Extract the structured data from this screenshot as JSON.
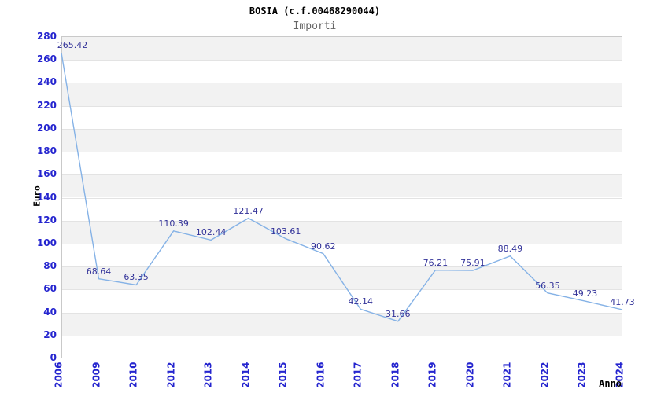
{
  "chart_data": {
    "type": "line",
    "title": "BOSIA (c.f.00468290044)",
    "subtitle": "Importi",
    "xlabel": "Anno",
    "ylabel": "Euro",
    "categories": [
      "2006",
      "2009",
      "2010",
      "2012",
      "2013",
      "2014",
      "2015",
      "2016",
      "2017",
      "2018",
      "2019",
      "2020",
      "2021",
      "2022",
      "2023",
      "2024"
    ],
    "values": [
      265.42,
      68.64,
      63.35,
      110.39,
      102.44,
      121.47,
      103.61,
      90.62,
      42.14,
      31.66,
      76.21,
      75.91,
      88.49,
      56.35,
      49.23,
      41.73
    ],
    "ylim": [
      0,
      280
    ],
    "ytick_step": 20,
    "yticks": [
      0,
      20,
      40,
      60,
      80,
      100,
      120,
      140,
      160,
      180,
      200,
      220,
      240,
      260,
      280
    ],
    "grid": "alternating-horizontal-bands",
    "legend": "none",
    "colors": {
      "line": "#85b2e6",
      "tick_label": "#2525cf",
      "data_label": "#333399",
      "band": "#f2f2f2",
      "gridline": "#e3e3e3",
      "border": "#c9c9c9",
      "title": "#000000",
      "subtitle": "#666666"
    }
  }
}
